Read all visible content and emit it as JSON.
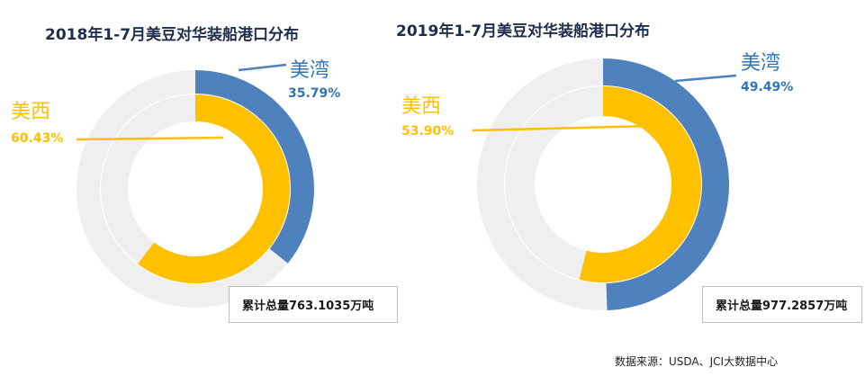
{
  "colors": {
    "west": "#FFC000",
    "gulf": "#4F81BD",
    "rest": "#EFEFEF",
    "gulf_text": "#2E75B6"
  },
  "chart_data": [
    {
      "type": "pie",
      "subtype": "double-donut",
      "title": "2018年1-7月美豆对华装船港口分布",
      "series": [
        {
          "name": "美湾",
          "ring": "outer",
          "value": 35.79,
          "label": "35.79%"
        },
        {
          "name": "美西",
          "ring": "inner",
          "value": 60.43,
          "label": "60.43%"
        }
      ],
      "total_note": "累计总量763.1035万吨"
    },
    {
      "type": "pie",
      "subtype": "double-donut",
      "title": "2019年1-7月美豆对华装船港口分布",
      "series": [
        {
          "name": "美湾",
          "ring": "outer",
          "value": 49.49,
          "label": "49.49%"
        },
        {
          "name": "美西",
          "ring": "inner",
          "value": 53.9,
          "label": "53.90%"
        }
      ],
      "total_note": "累计总量977.2857万吨"
    }
  ],
  "source": "数据来源：USDA、JCI大数据中心"
}
